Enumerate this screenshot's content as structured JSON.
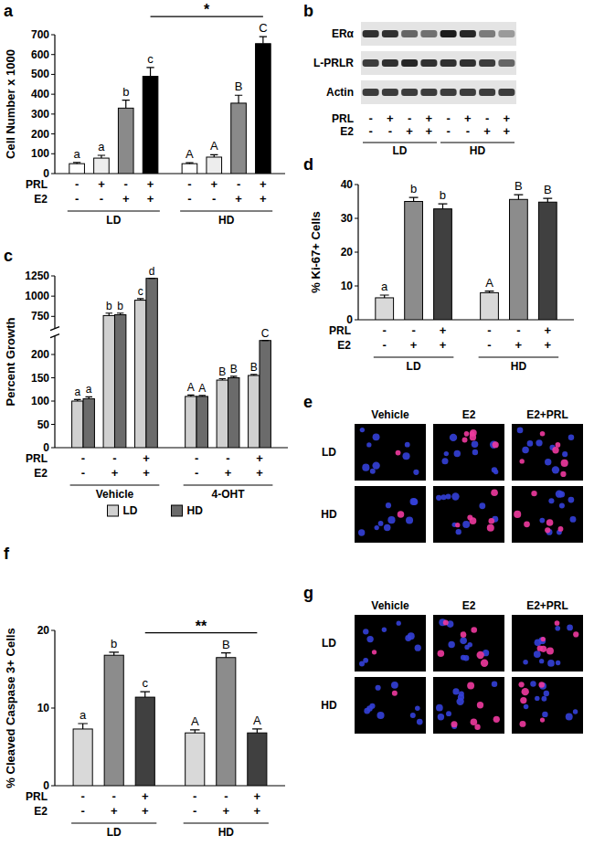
{
  "chart_data": [
    {
      "title": "a",
      "type": "bar",
      "y_label": "Cell Number x 1000",
      "categories": [
        null,
        null,
        null,
        null,
        null,
        null,
        null,
        null
      ],
      "values": [
        50,
        78,
        330,
        490,
        50,
        83,
        355,
        655
      ],
      "errors": [
        6,
        14,
        40,
        45,
        5,
        12,
        40,
        35
      ],
      "colors": [
        "#ffffff",
        "#ededed",
        "#8a8a8a",
        "#000000",
        "#ffffff",
        "#ededed",
        "#8a8a8a",
        "#000000"
      ],
      "ylim": [
        0,
        700
      ],
      "yticks": [
        0,
        100,
        200,
        300,
        400,
        500,
        600,
        700
      ],
      "bar_letters": [
        "a",
        "a",
        "b",
        "c",
        "A",
        "A",
        "B",
        "C"
      ],
      "treatments": [
        {
          "name": "PRL",
          "signs": [
            "-",
            "+",
            "-",
            "+",
            "-",
            "+",
            "-",
            "+"
          ]
        },
        {
          "name": "E2",
          "signs": [
            "-",
            "-",
            "+",
            "+",
            "-",
            "-",
            "+",
            "+"
          ]
        }
      ],
      "groups": [
        "LD",
        "LD",
        "LD",
        "LD",
        "HD",
        "HD",
        "HD",
        "HD"
      ],
      "significance": [
        {
          "text": "*",
          "from": 3,
          "to": 7
        }
      ]
    },
    {
      "title": "c",
      "type": "bar",
      "y_label": "Percent Growth",
      "categories": [
        null,
        null,
        null,
        null,
        null,
        null
      ],
      "series": [
        {
          "name": "LD",
          "color": "#d0d0d0",
          "values": [
            100,
            760,
            950,
            110,
            145,
            155
          ],
          "errors": [
            3,
            30,
            20,
            3,
            3,
            2
          ],
          "bar_letters": [
            "a",
            "b",
            "c",
            "A",
            "B",
            "B"
          ]
        },
        {
          "name": "HD",
          "color": "#6b6b6b",
          "values": [
            105,
            770,
            1220,
            110,
            150,
            230
          ],
          "errors": [
            4,
            20,
            0,
            2,
            3,
            0
          ],
          "bar_letters": [
            "a",
            "b",
            "d",
            "A",
            "B",
            "C"
          ]
        }
      ],
      "ylim": [
        0,
        1250
      ],
      "yticks": [
        0,
        50,
        100,
        150,
        200,
        750,
        1000,
        1250
      ],
      "y_break": [
        240,
        600
      ],
      "treatments": [
        {
          "name": "PRL",
          "signs": [
            "-",
            "-",
            "+",
            "-",
            "-",
            "+"
          ]
        },
        {
          "name": "E2",
          "signs": [
            "-",
            "+",
            "+",
            "-",
            "+",
            "+"
          ]
        }
      ],
      "groups": [
        "Vehicle",
        "Vehicle",
        "Vehicle",
        "4-OHT",
        "4-OHT",
        "4-OHT"
      ],
      "legend": "bottom"
    },
    {
      "title": "d",
      "type": "bar",
      "y_label": "% Ki-67+ Cells",
      "categories": [
        null,
        null,
        null,
        null,
        null,
        null
      ],
      "values": [
        6.5,
        35,
        32.8,
        8,
        35.6,
        34.8
      ],
      "errors": [
        0.8,
        1.2,
        1.5,
        0.5,
        1.4,
        1.1
      ],
      "colors": [
        "#d9d9d9",
        "#8c8c8c",
        "#404040",
        "#d9d9d9",
        "#8c8c8c",
        "#404040"
      ],
      "ylim": [
        0,
        40
      ],
      "yticks": [
        0,
        10,
        20,
        30,
        40
      ],
      "bar_letters": [
        "a",
        "b",
        "b",
        "A",
        "B",
        "B"
      ],
      "treatments": [
        {
          "name": "PRL",
          "signs": [
            "-",
            "-",
            "+",
            "-",
            "-",
            "+"
          ]
        },
        {
          "name": "E2",
          "signs": [
            "-",
            "+",
            "+",
            "-",
            "+",
            "+"
          ]
        }
      ],
      "groups": [
        "LD",
        "LD",
        "LD",
        "HD",
        "HD",
        "HD"
      ]
    },
    {
      "title": "f",
      "type": "bar",
      "y_label": "% Cleaved Caspase 3+ Cells",
      "categories": [
        null,
        null,
        null,
        null,
        null,
        null
      ],
      "values": [
        7.3,
        16.8,
        11.4,
        6.8,
        16.5,
        6.8
      ],
      "errors": [
        0.7,
        0.4,
        0.7,
        0.4,
        0.6,
        0.5
      ],
      "colors": [
        "#d9d9d9",
        "#8c8c8c",
        "#404040",
        "#d9d9d9",
        "#8c8c8c",
        "#404040"
      ],
      "ylim": [
        0,
        20
      ],
      "yticks": [
        0,
        10,
        20
      ],
      "bar_letters": [
        "a",
        "b",
        "c",
        "A",
        "B",
        "A"
      ],
      "treatments": [
        {
          "name": "PRL",
          "signs": [
            "-",
            "-",
            "+",
            "-",
            "-",
            "+"
          ]
        },
        {
          "name": "E2",
          "signs": [
            "-",
            "+",
            "+",
            "-",
            "+",
            "+"
          ]
        }
      ],
      "groups": [
        "LD",
        "LD",
        "LD",
        "HD",
        "HD",
        "HD"
      ],
      "significance": [
        {
          "text": "**",
          "from": 2,
          "to": 5
        }
      ]
    }
  ],
  "blot": {
    "title": "b",
    "rows": [
      {
        "name": "ERα",
        "intensity": [
          0.85,
          0.85,
          0.6,
          0.55,
          0.95,
          0.9,
          0.5,
          0.35
        ]
      },
      {
        "name": "L-PRLR",
        "intensity": [
          0.8,
          0.85,
          0.9,
          0.85,
          0.85,
          0.85,
          0.8,
          0.6
        ]
      },
      {
        "name": "Actin",
        "intensity": [
          0.8,
          0.8,
          0.8,
          0.8,
          0.8,
          0.8,
          0.8,
          0.8
        ]
      }
    ],
    "treatments": [
      {
        "name": "PRL",
        "signs": [
          "-",
          "+",
          "-",
          "+",
          "-",
          "+",
          "-",
          "+"
        ]
      },
      {
        "name": "E2",
        "signs": [
          "-",
          "-",
          "+",
          "+",
          "-",
          "-",
          "+",
          "+"
        ]
      }
    ],
    "groups": [
      "LD",
      "LD",
      "LD",
      "LD",
      "HD",
      "HD",
      "HD",
      "HD"
    ]
  },
  "images": [
    {
      "title": "e",
      "columns": [
        "Vehicle",
        "E2",
        "E2+PRL"
      ],
      "rows": [
        "LD",
        "HD"
      ]
    },
    {
      "title": "g",
      "columns": [
        "Vehicle",
        "E2",
        "E2+PRL"
      ],
      "rows": [
        "LD",
        "HD"
      ]
    }
  ]
}
